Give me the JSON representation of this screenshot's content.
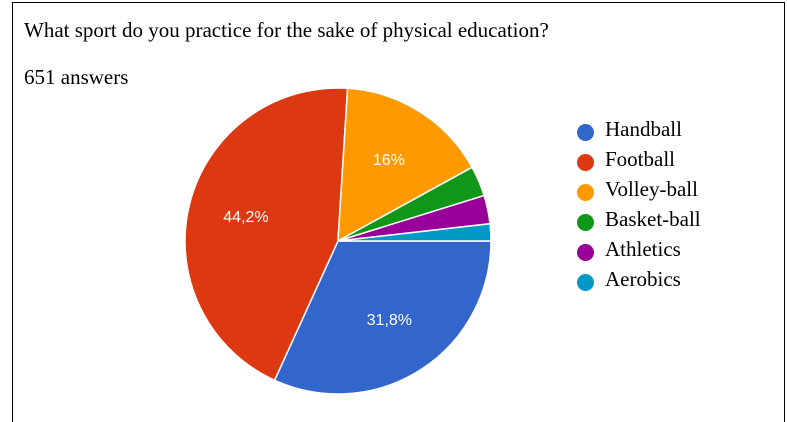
{
  "card": {
    "question": "What sport do you practice for the sake of physical education?",
    "answers": "651 answers"
  },
  "chart_data": {
    "type": "pie",
    "title": "What sport do you practice for the sake of physical education?",
    "subtitle": "651 answers",
    "legend_position": "right",
    "slices": [
      {
        "name": "Handball",
        "value": 31.8,
        "label": "31,8%",
        "color": "#3366cc"
      },
      {
        "name": "Football",
        "value": 44.2,
        "label": "44,2%",
        "color": "#dc3912"
      },
      {
        "name": "Volley-ball",
        "value": 16.0,
        "label": "16%",
        "color": "#ff9900"
      },
      {
        "name": "Basket-ball",
        "value": 3.2,
        "label": "",
        "color": "#109618"
      },
      {
        "name": "Athletics",
        "value": 3.0,
        "label": "",
        "color": "#990099"
      },
      {
        "name": "Aerobics",
        "value": 1.8,
        "label": "",
        "color": "#0099c6"
      }
    ]
  }
}
